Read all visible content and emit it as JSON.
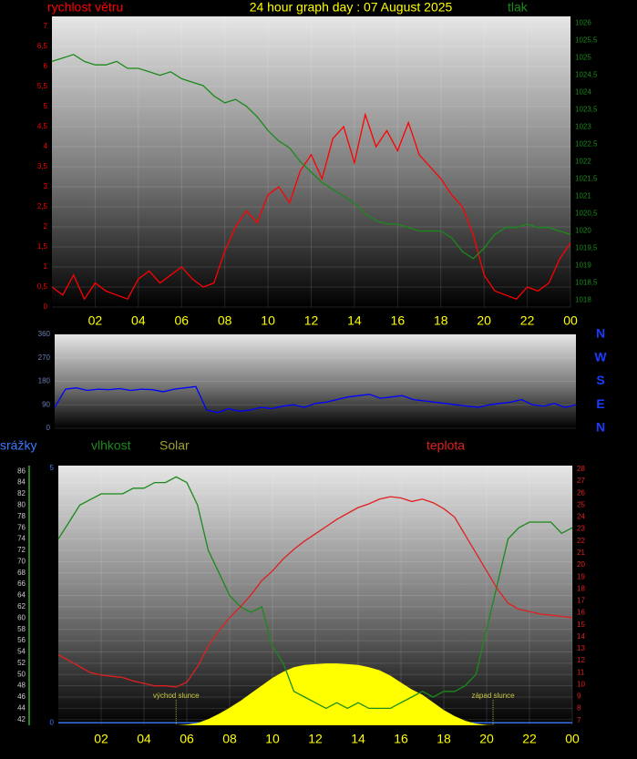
{
  "chart_data": [
    {
      "type": "line",
      "title": "24 hour graph day : 07 August 2025",
      "x": [
        0,
        0.5,
        1,
        1.5,
        2,
        2.5,
        3,
        3.5,
        4,
        4.5,
        5,
        5.5,
        6,
        6.5,
        7,
        7.5,
        8,
        8.5,
        9,
        9.5,
        10,
        10.5,
        11,
        11.5,
        12,
        12.5,
        13,
        13.5,
        14,
        14.5,
        15,
        15.5,
        16,
        16.5,
        17,
        17.5,
        18,
        18.5,
        19,
        19.5,
        20,
        20.5,
        21,
        21.5,
        22,
        22.5,
        23,
        23.5,
        24
      ],
      "xlim": [
        0,
        24
      ],
      "xticks": [
        {
          "value": 2,
          "label": "02"
        },
        {
          "value": 4,
          "label": "04"
        },
        {
          "value": 6,
          "label": "06"
        },
        {
          "value": 8,
          "label": "08"
        },
        10,
        12,
        14,
        16,
        18,
        20,
        22,
        {
          "value": 24,
          "label": "00"
        }
      ],
      "ylim": [
        0,
        7.25
      ],
      "yticks": [
        0,
        {
          "value": 0.5,
          "label": "0,5"
        },
        1,
        {
          "value": 1.5,
          "label": "1,5"
        },
        2,
        {
          "value": 2.5,
          "label": "2,5"
        },
        3,
        {
          "value": 3.5,
          "label": "3,5"
        },
        4,
        {
          "value": 4.5,
          "label": "4,5"
        },
        5,
        {
          "value": 5.5,
          "label": "5,5"
        },
        6,
        {
          "value": 6.5,
          "label": "6,5"
        },
        7
      ],
      "y2lim": [
        1017.8,
        1026.2
      ],
      "y2ticks": [
        1018,
        {
          "value": 1018.5,
          "label": "1018,5"
        },
        1019,
        {
          "value": 1019.5,
          "label": "1019,5"
        },
        1020,
        {
          "value": 1020.5,
          "label": "1020,5"
        },
        1021,
        {
          "value": 1021.5,
          "label": "1021,5"
        },
        1022,
        {
          "value": 1022.5,
          "label": "1022,5"
        },
        1023,
        {
          "value": 1023.5,
          "label": "1023,5"
        },
        1024,
        {
          "value": 1024.5,
          "label": "1024,5"
        },
        1025,
        {
          "value": 1025.5,
          "label": "1025,5"
        },
        1026
      ],
      "grid": true,
      "series": [
        {
          "name": "rychlost větru",
          "color": "#ff0000",
          "values": [
            0.5,
            0.3,
            0.8,
            0.2,
            0.6,
            0.4,
            0.3,
            0.2,
            0.7,
            0.9,
            0.6,
            0.8,
            1.0,
            0.7,
            0.5,
            0.6,
            1.4,
            2.0,
            2.4,
            2.1,
            2.8,
            3.0,
            2.6,
            3.4,
            3.8,
            3.2,
            4.2,
            4.5,
            3.6,
            4.8,
            4.0,
            4.4,
            3.9,
            4.6,
            3.8,
            3.5,
            3.2,
            2.8,
            2.5,
            1.8,
            0.8,
            0.4,
            0.3,
            0.2,
            0.5,
            0.4,
            0.6,
            1.2,
            1.6
          ]
        },
        {
          "name": "tlak",
          "color": "#1a8a1a",
          "axis": "y2",
          "values": [
            1024.9,
            1025.0,
            1025.1,
            1024.9,
            1024.8,
            1024.8,
            1024.9,
            1024.7,
            1024.7,
            1024.6,
            1024.5,
            1024.6,
            1024.4,
            1024.3,
            1024.2,
            1023.9,
            1023.7,
            1023.8,
            1023.6,
            1023.3,
            1022.9,
            1022.6,
            1022.4,
            1022.0,
            1021.7,
            1021.4,
            1021.2,
            1021.0,
            1020.8,
            1020.5,
            1020.3,
            1020.2,
            1020.2,
            1020.1,
            1020.0,
            1020.0,
            1020.0,
            1019.8,
            1019.4,
            1019.2,
            1019.5,
            1019.9,
            1020.1,
            1020.1,
            1020.2,
            1020.1,
            1020.1,
            1020.0,
            1019.9
          ]
        }
      ]
    },
    {
      "type": "line",
      "x": [
        0,
        0.5,
        1,
        1.5,
        2,
        2.5,
        3,
        3.5,
        4,
        4.5,
        5,
        5.5,
        6,
        6.5,
        7,
        7.5,
        8,
        8.5,
        9,
        9.5,
        10,
        10.5,
        11,
        11.5,
        12,
        12.5,
        13,
        13.5,
        14,
        14.5,
        15,
        15.5,
        16,
        16.5,
        17,
        17.5,
        18,
        18.5,
        19,
        19.5,
        20,
        20.5,
        21,
        21.5,
        22,
        22.5,
        23,
        23.5,
        24
      ],
      "xlim": [
        0,
        24
      ],
      "ylim": [
        0,
        360
      ],
      "yticks": [
        0,
        90,
        180,
        270,
        360
      ],
      "grid": true,
      "compass": [
        "N",
        "W",
        "S",
        "E",
        "N"
      ],
      "series": [
        {
          "color": "#0000ff",
          "values": [
            80,
            150,
            155,
            145,
            150,
            148,
            152,
            145,
            150,
            148,
            140,
            150,
            155,
            160,
            70,
            60,
            75,
            65,
            70,
            80,
            75,
            85,
            90,
            80,
            95,
            100,
            110,
            120,
            125,
            130,
            115,
            120,
            125,
            110,
            105,
            100,
            95,
            90,
            85,
            80,
            90,
            95,
            100,
            110,
            90,
            85,
            95,
            80,
            90
          ]
        }
      ]
    },
    {
      "type": "line",
      "x": [
        0,
        0.5,
        1,
        1.5,
        2,
        2.5,
        3,
        3.5,
        4,
        4.5,
        5,
        5.5,
        6,
        6.5,
        7,
        7.5,
        8,
        8.5,
        9,
        9.5,
        10,
        10.5,
        11,
        11.5,
        12,
        12.5,
        13,
        13.5,
        14,
        14.5,
        15,
        15.5,
        16,
        16.5,
        17,
        17.5,
        18,
        18.5,
        19,
        19.5,
        20,
        20.5,
        21,
        21.5,
        22,
        22.5,
        23,
        23.5,
        24
      ],
      "xlim": [
        0,
        24
      ],
      "xticks": [
        {
          "value": 2,
          "label": "02"
        },
        {
          "value": 4,
          "label": "04"
        },
        {
          "value": 6,
          "label": "06"
        },
        {
          "value": 8,
          "label": "08"
        },
        10,
        12,
        14,
        16,
        18,
        20,
        22,
        {
          "value": 24,
          "label": "00"
        }
      ],
      "ylim": [
        41,
        87
      ],
      "yticks": [
        42,
        44,
        46,
        48,
        50,
        52,
        54,
        56,
        58,
        60,
        62,
        64,
        66,
        68,
        70,
        72,
        74,
        76,
        78,
        80,
        82,
        84,
        86
      ],
      "y2lim": [
        6.6,
        28.3
      ],
      "y2ticks": [
        7,
        8,
        9,
        10,
        11,
        12,
        13,
        14,
        15,
        16,
        17,
        18,
        19,
        20,
        21,
        22,
        23,
        24,
        25,
        26,
        27,
        28
      ],
      "y3lim": [
        -0.05,
        5.05
      ],
      "y3ticks": [
        0,
        5
      ],
      "y4lim": [
        0,
        3400
      ],
      "grid": true,
      "annotations": [
        {
          "label": "východ slunce",
          "x": 5.5
        },
        {
          "label": "západ slunce",
          "x": 20.3
        }
      ],
      "series": [
        {
          "name": "srážky",
          "color": "#3a7bff",
          "axis": "y3",
          "values": [
            0,
            0,
            0,
            0,
            0,
            0,
            0,
            0,
            0,
            0,
            0,
            0,
            0,
            0,
            0,
            0,
            0,
            0,
            0,
            0,
            0,
            0,
            0,
            0,
            0,
            0,
            0,
            0,
            0,
            0,
            0,
            0,
            0,
            0,
            0,
            0,
            0,
            0,
            0,
            0,
            0,
            0,
            0,
            0,
            0,
            0,
            0,
            0,
            0
          ]
        },
        {
          "name": "Solar",
          "color": "#ffff00",
          "axis": "y4",
          "fill": true,
          "values": [
            0,
            0,
            0,
            0,
            0,
            0,
            0,
            0,
            0,
            0,
            0,
            0,
            10,
            30,
            80,
            150,
            230,
            320,
            420,
            520,
            620,
            700,
            760,
            790,
            800,
            810,
            810,
            800,
            790,
            760,
            720,
            650,
            560,
            470,
            400,
            300,
            200,
            120,
            60,
            20,
            5,
            0,
            0,
            0,
            0,
            0,
            0,
            0,
            0
          ]
        },
        {
          "name": "vlhkost",
          "color": "#1a8a1a",
          "values": [
            74,
            77,
            80,
            81,
            82,
            82,
            82,
            83,
            83,
            84,
            84,
            85,
            84,
            80,
            72,
            68,
            64,
            62,
            61,
            62,
            55,
            52,
            47,
            46,
            45,
            44,
            45,
            44,
            45,
            44,
            44,
            44,
            45,
            46,
            47,
            46,
            47,
            47,
            48,
            50,
            58,
            66,
            74,
            76,
            77,
            77,
            77,
            75,
            76
          ]
        },
        {
          "name": "teplota",
          "color": "#e02020",
          "axis": "y2",
          "values": [
            12.5,
            12,
            11.5,
            11,
            10.8,
            10.7,
            10.6,
            10.3,
            10.1,
            9.9,
            9.9,
            9.8,
            10.2,
            11.5,
            13.2,
            14.5,
            15.6,
            16.5,
            17.5,
            18.7,
            19.5,
            20.5,
            21.3,
            22,
            22.6,
            23.2,
            23.8,
            24.3,
            24.8,
            25.1,
            25.5,
            25.7,
            25.6,
            25.3,
            25.5,
            25.2,
            24.7,
            24,
            22.5,
            21,
            19.5,
            18,
            16.8,
            16.3,
            16.1,
            15.9,
            15.8,
            15.7,
            15.6
          ]
        }
      ]
    }
  ]
}
